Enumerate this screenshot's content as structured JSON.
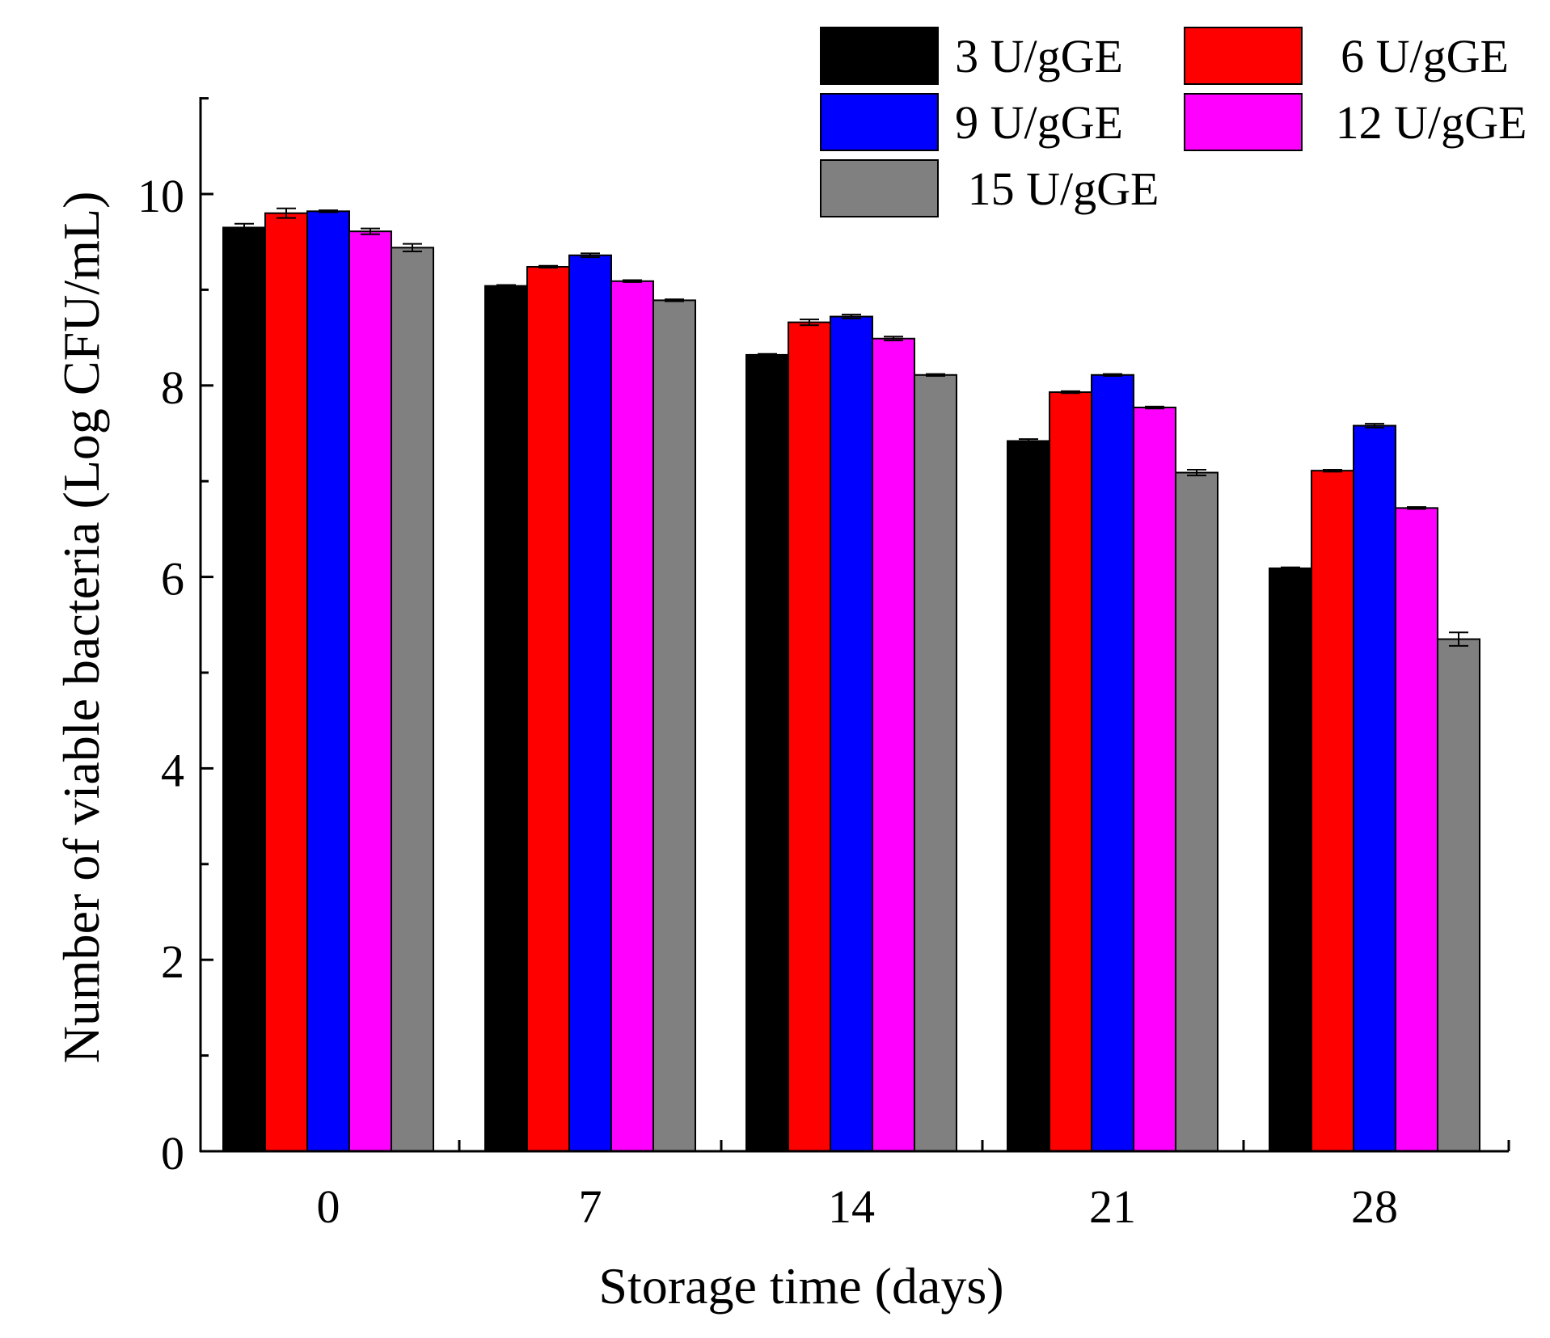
{
  "chart_data": {
    "type": "bar",
    "title": "",
    "xlabel": "Storage time (days)",
    "ylabel": "Number of viable bacteria (Log CFU/mL)",
    "categories": [
      "0",
      "7",
      "14",
      "21",
      "28"
    ],
    "ylim": [
      0,
      11
    ],
    "yticks": [
      0,
      2,
      4,
      6,
      8,
      10
    ],
    "yticks_minor": [
      1,
      3,
      5,
      7,
      9,
      11
    ],
    "tick_labels": [
      "0",
      "2",
      "4",
      "6",
      "8",
      "10"
    ],
    "grid": false,
    "legend_position": "top-right",
    "series": [
      {
        "name": "3 U/gGE",
        "color": "#000000",
        "values": [
          9.65,
          9.04,
          8.32,
          7.42,
          6.09
        ],
        "errors": [
          0.04,
          0.01,
          0.01,
          0.02,
          0.01
        ]
      },
      {
        "name": "6 U/gGE",
        "color": "#ff0000",
        "values": [
          9.8,
          9.24,
          8.66,
          7.93,
          7.11
        ],
        "errors": [
          0.05,
          0.01,
          0.03,
          0.01,
          0.01
        ]
      },
      {
        "name": "9 U/gGE",
        "color": "#0000ff",
        "values": [
          9.82,
          9.36,
          8.72,
          8.11,
          7.58
        ],
        "errors": [
          0.01,
          0.02,
          0.02,
          0.01,
          0.02
        ]
      },
      {
        "name": "12 U/gGE",
        "color": "#ff00ff",
        "values": [
          9.61,
          9.09,
          8.49,
          7.77,
          6.72
        ],
        "errors": [
          0.03,
          0.01,
          0.02,
          0.01,
          0.01
        ]
      },
      {
        "name": "15 U/gGE",
        "color": "#808080",
        "values": [
          9.44,
          8.89,
          8.11,
          7.09,
          5.35
        ],
        "errors": [
          0.04,
          0.01,
          0.01,
          0.03,
          0.07
        ]
      }
    ]
  }
}
